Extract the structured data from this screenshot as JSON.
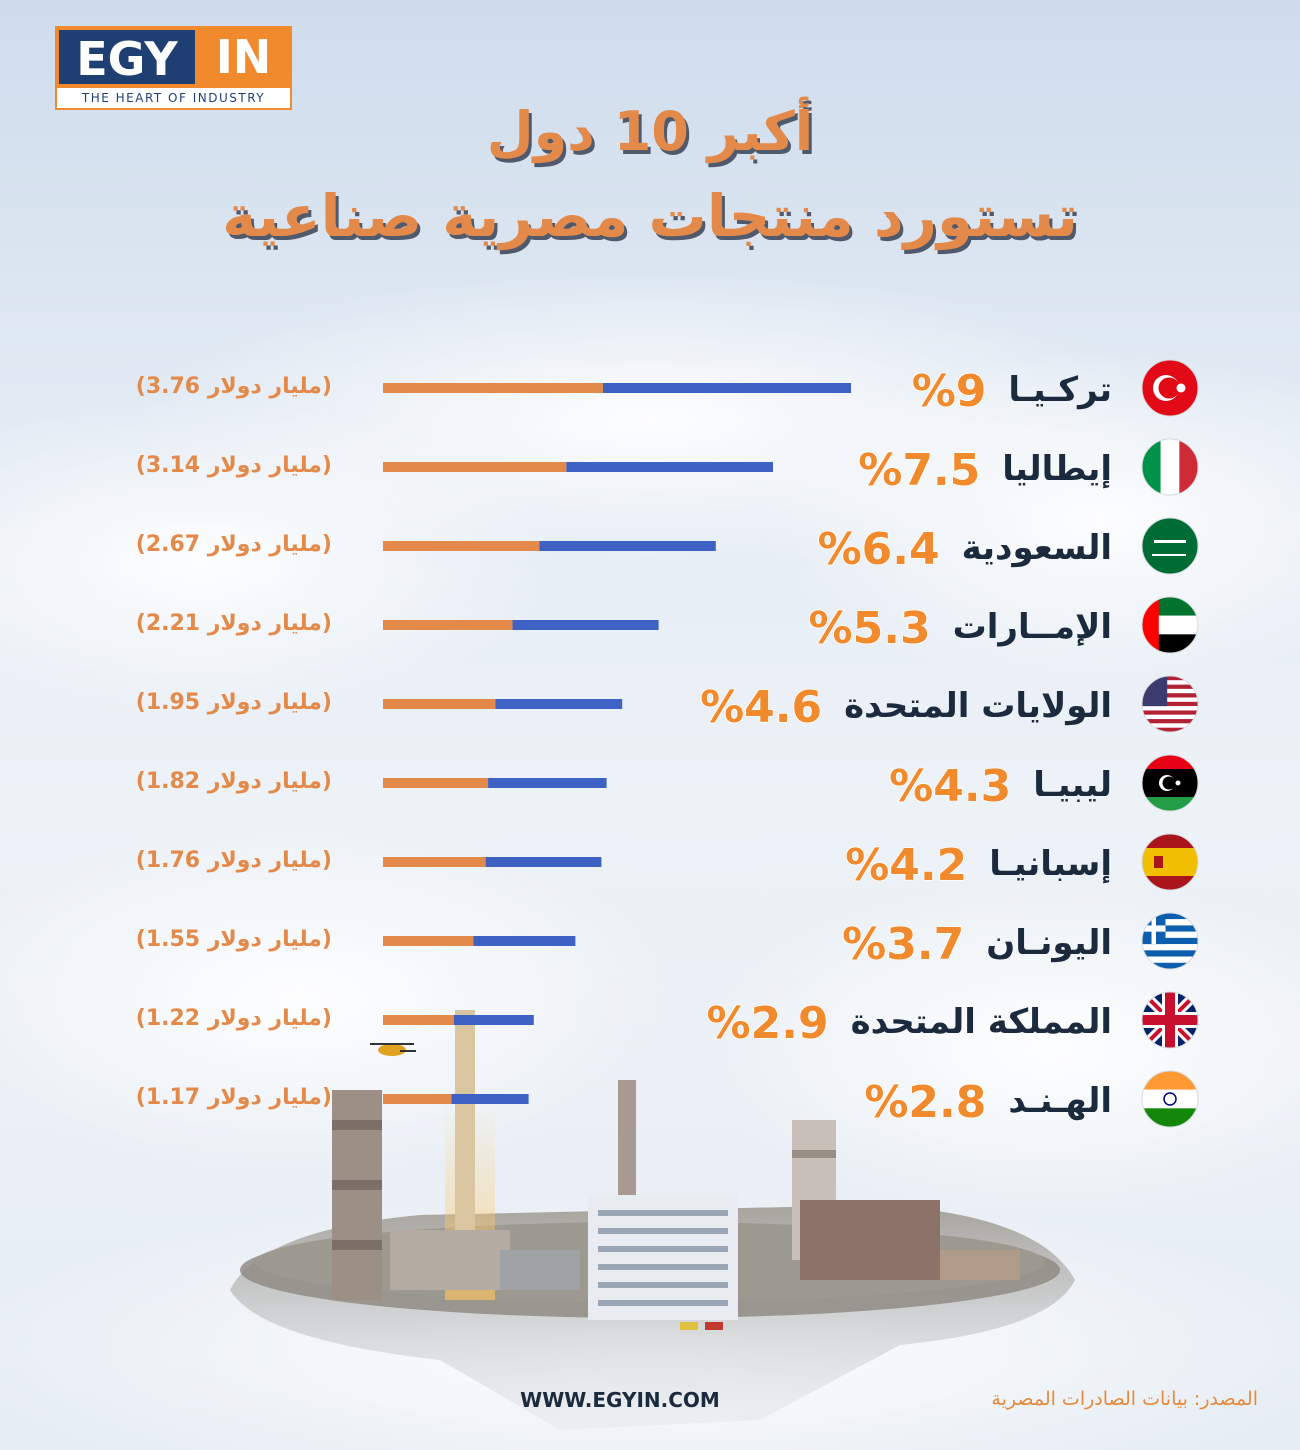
{
  "logo": {
    "brand_left": "EGY",
    "brand_right": "IN",
    "tagline": "THE HEART OF INDUSTRY"
  },
  "title": {
    "line1": "أكبر 10 دول",
    "line2": "تستورد منتجات مصرية صناعية"
  },
  "footer": {
    "website": "WWW.EGYIN.COM",
    "source": "المصدر: بيانات الصادرات المصرية"
  },
  "colors": {
    "orange": "#e38a4a",
    "blue": "#3d62c3",
    "navy": "#1c2a3e",
    "logo_blue": "#1f3f73"
  },
  "chart_data": {
    "type": "bar",
    "orientation": "horizontal",
    "categories": [
      "تركيا",
      "إيطاليا",
      "السعودية",
      "الإمارات",
      "الولايات المتحدة",
      "ليبيا",
      "إسبانيا",
      "اليونان",
      "المملكة المتحدة",
      "الهند"
    ],
    "category_labels": [
      "تركـيـا",
      "إيطاليا",
      "السعودية",
      "الإمــارات",
      "الولايات المتحدة",
      "ليبيـا",
      "إسبانيـا",
      "اليونـان",
      "المملكة المتحدة",
      "الهـنـد"
    ],
    "values": [
      9,
      7.5,
      6.4,
      5.3,
      4.6,
      4.3,
      4.2,
      3.7,
      2.9,
      2.8
    ],
    "value_labels": [
      "%9",
      "%7.5",
      "%6.4",
      "%5.3",
      "%4.6",
      "%4.3",
      "%4.2",
      "%3.7",
      "%2.9",
      "%2.8"
    ],
    "amounts": [
      3.76,
      3.14,
      2.67,
      2.21,
      1.95,
      1.82,
      1.76,
      1.55,
      1.22,
      1.17
    ],
    "amount_labels": [
      "(مليار دولار 3.76)",
      "(مليار دولار 3.14)",
      "(مليار دولار 2.67)",
      "(مليار دولار 2.21)",
      "(مليار دولار 1.95)",
      "(مليار دولار 1.82)",
      "(مليار دولار 1.76)",
      "(مليار دولار 1.55)",
      "(مليار دولار 1.22)",
      "(مليار دولار 1.17)"
    ],
    "flag_icons": [
      "turkey-flag-icon",
      "italy-flag-icon",
      "saudi-arabia-flag-icon",
      "uae-flag-icon",
      "usa-flag-icon",
      "libya-flag-icon",
      "spain-flag-icon",
      "greece-flag-icon",
      "uk-flag-icon",
      "india-flag-icon"
    ],
    "bar_colors": [
      "#e38a4a",
      "#3d62c3"
    ],
    "grid": false,
    "legend": "none"
  }
}
